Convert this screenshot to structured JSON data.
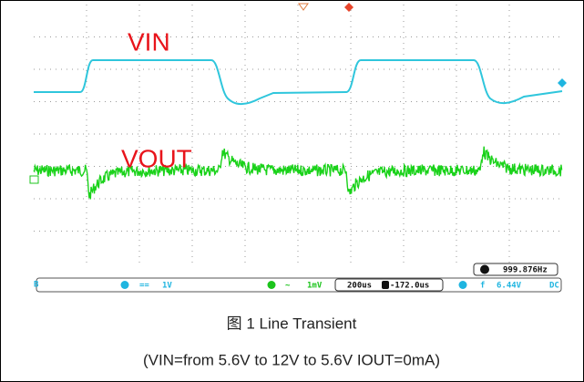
{
  "scope": {
    "labels": {
      "vin": "VIN",
      "vout": "VOUT"
    },
    "frequency": "999.876Hz",
    "ch2_scale": "1V",
    "ch4_scale": "1mV",
    "timebase": "200us",
    "trigger_delay": "-172.0us",
    "trigger_level": "6.44V",
    "coupling": "DC"
  },
  "caption": {
    "title": "图 1 Line Transient",
    "conditions": "(VIN=from 5.6V to 12V to 5.6V IOUT=0mA)"
  }
}
